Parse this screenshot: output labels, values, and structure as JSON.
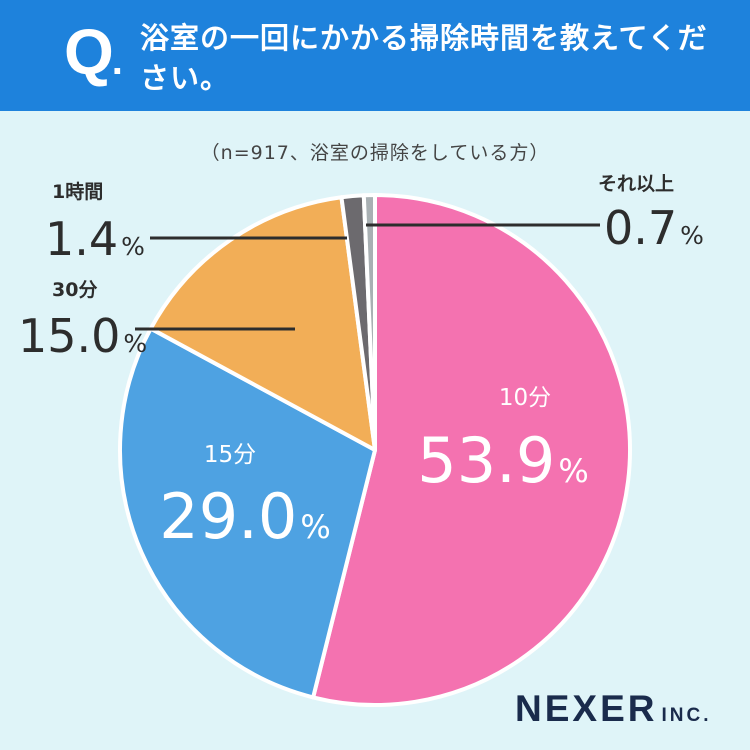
{
  "header": {
    "q_mark": "Q",
    "q_dot": ".",
    "question": "浴室の一回にかかる掃除時間を教えてください。"
  },
  "sample_note": "（n=917、浴室の掃除をしている方）",
  "brand": {
    "name": "NEXER",
    "suffix": "INC."
  },
  "colors": {
    "header_bg": "#1e82dc",
    "page_bg": "#dff4f8",
    "slice_10min": "#f472b0",
    "slice_15min": "#4ea2e2",
    "slice_30min": "#f2ae57",
    "slice_1hour": "#6c6a6e",
    "slice_more": "#a9b0b3"
  },
  "chart_data": {
    "type": "pie",
    "title": "浴室の一回にかかる掃除時間を教えてください。",
    "subtitle": "（n=917、浴室の掃除をしている方）",
    "start": "12 o'clock, clockwise",
    "unit": "%",
    "slices": [
      {
        "label": "10分",
        "value": 53.9,
        "value_text": "53.9",
        "color": "#f472b0",
        "label_position": "inside"
      },
      {
        "label": "15分",
        "value": 29.0,
        "value_text": "29.0",
        "color": "#4ea2e2",
        "label_position": "inside"
      },
      {
        "label": "30分",
        "value": 15.0,
        "value_text": "15.0",
        "color": "#f2ae57",
        "label_position": "outside-left"
      },
      {
        "label": "1時間",
        "value": 1.4,
        "value_text": "1.4",
        "color": "#6c6a6e",
        "label_position": "outside-left"
      },
      {
        "label": "それ以上",
        "value": 0.7,
        "value_text": "0.7",
        "color": "#a9b0b3",
        "label_position": "outside-right"
      }
    ]
  }
}
